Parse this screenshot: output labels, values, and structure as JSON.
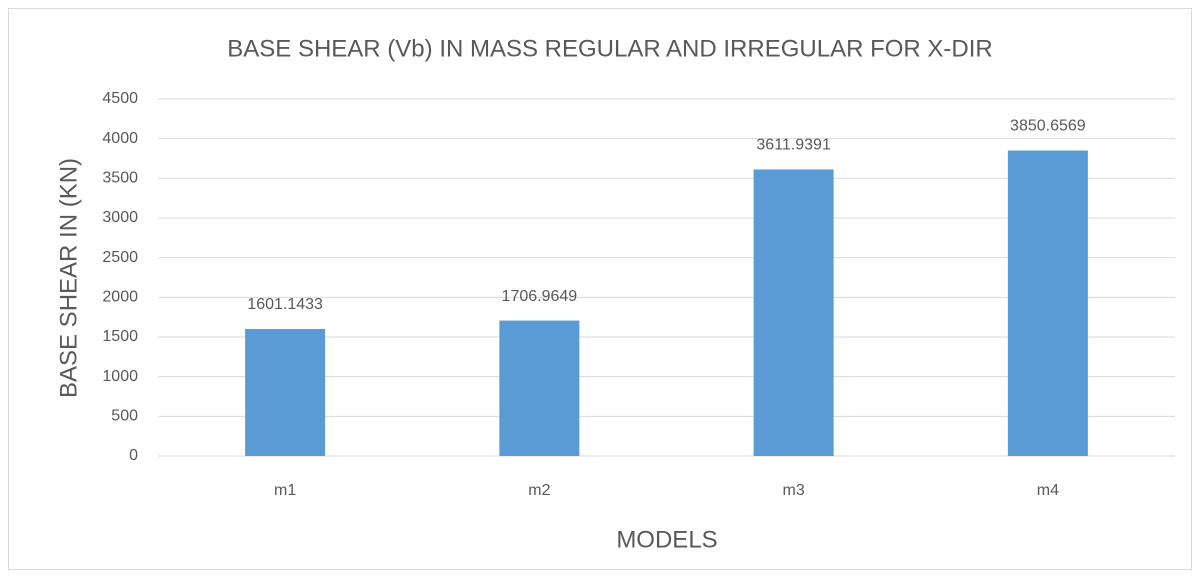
{
  "chart_data": {
    "type": "bar",
    "title": "BASE SHEAR (Vb) IN MASS REGULAR AND IRREGULAR FOR X-DIR",
    "x_label": "MODELS",
    "y_label": "BASE SHEAR IN (KN)",
    "categories": [
      "m1",
      "m2",
      "m3",
      "m4"
    ],
    "values": [
      1601.1433,
      1706.9649,
      3611.9391,
      3850.6569
    ],
    "color": "#5b9bd5",
    "ylim": [
      0,
      4500
    ],
    "yticks": [
      0,
      500,
      1000,
      1500,
      2000,
      2500,
      3000,
      3500,
      4000,
      4500
    ],
    "grid": true
  }
}
